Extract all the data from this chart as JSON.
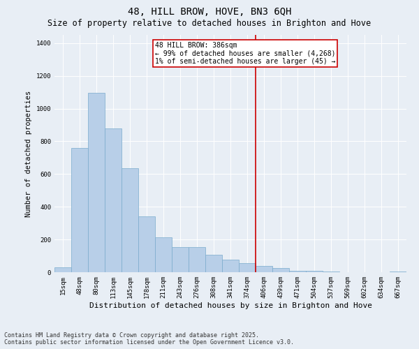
{
  "title1": "48, HILL BROW, HOVE, BN3 6QH",
  "title2": "Size of property relative to detached houses in Brighton and Hove",
  "xlabel": "Distribution of detached houses by size in Brighton and Hove",
  "ylabel": "Number of detached properties",
  "categories": [
    "15sqm",
    "48sqm",
    "80sqm",
    "113sqm",
    "145sqm",
    "178sqm",
    "211sqm",
    "243sqm",
    "276sqm",
    "308sqm",
    "341sqm",
    "374sqm",
    "406sqm",
    "439sqm",
    "471sqm",
    "504sqm",
    "537sqm",
    "569sqm",
    "602sqm",
    "634sqm",
    "667sqm"
  ],
  "bar_heights": [
    30,
    760,
    1095,
    880,
    635,
    340,
    215,
    155,
    155,
    105,
    75,
    55,
    40,
    25,
    10,
    10,
    5,
    0,
    0,
    0,
    5
  ],
  "bar_color": "#b8cfe8",
  "bar_edge_color": "#7aabcc",
  "vline_color": "#cc0000",
  "annotation_text": "48 HILL BROW: 386sqm\n← 99% of detached houses are smaller (4,268)\n1% of semi-detached houses are larger (45) →",
  "annotation_box_color": "#ffffff",
  "annotation_box_edge_color": "#cc0000",
  "ylim": [
    0,
    1450
  ],
  "yticks": [
    0,
    200,
    400,
    600,
    800,
    1000,
    1200,
    1400
  ],
  "bg_color": "#e8eef5",
  "footnote": "Contains HM Land Registry data © Crown copyright and database right 2025.\nContains public sector information licensed under the Open Government Licence v3.0.",
  "title1_fontsize": 10,
  "title2_fontsize": 8.5,
  "ylabel_fontsize": 7.5,
  "xlabel_fontsize": 8,
  "tick_fontsize": 6.5,
  "annotation_fontsize": 7,
  "footnote_fontsize": 6
}
